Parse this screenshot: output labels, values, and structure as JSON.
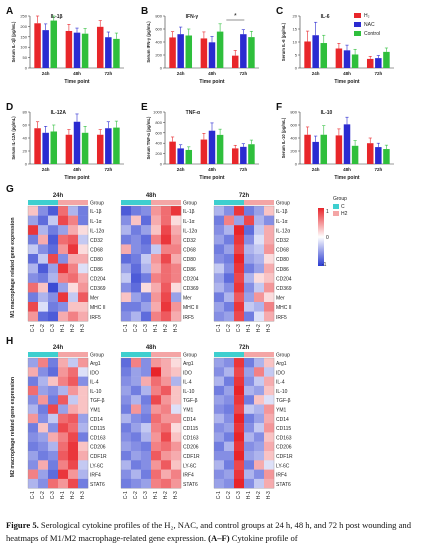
{
  "chart_data": [
    {
      "panel": "A",
      "type": "bar",
      "title": "IL-1β",
      "ylabel": "Serum IL-1β (pg/mL)",
      "xlabel": "Time point",
      "categories": [
        "24h",
        "48h",
        "72h"
      ],
      "ylim": [
        0,
        250
      ],
      "yticks": [
        0,
        50,
        100,
        150,
        200,
        250
      ],
      "series": [
        {
          "name": "H2",
          "values": [
            215,
            178,
            198
          ]
        },
        {
          "name": "NAC",
          "values": [
            182,
            170,
            148
          ]
        },
        {
          "name": "Control",
          "values": [
            228,
            165,
            140
          ]
        }
      ],
      "errors": [
        [
          38,
          32,
          30
        ],
        [
          30,
          22,
          25
        ],
        [
          42,
          25,
          28
        ]
      ]
    },
    {
      "panel": "B",
      "type": "bar",
      "title": "IFN-γ",
      "ylabel": "Serum IFN-γ (pg/mL)",
      "xlabel": "Time point",
      "categories": [
        "24h",
        "48h",
        "72h"
      ],
      "ylim": [
        0,
        800
      ],
      "yticks": [
        0,
        200,
        400,
        600,
        800
      ],
      "series": [
        {
          "name": "H2",
          "values": [
            470,
            455,
            190
          ]
        },
        {
          "name": "NAC",
          "values": [
            520,
            395,
            520
          ]
        },
        {
          "name": "Control",
          "values": [
            500,
            560,
            475
          ]
        }
      ],
      "errors": [
        [
          90,
          100,
          80
        ],
        [
          110,
          90,
          70
        ],
        [
          100,
          120,
          90
        ]
      ],
      "annotation": "*"
    },
    {
      "panel": "C",
      "type": "bar",
      "title": "IL-6",
      "ylabel": "Serum IL-6 (pg/mL)",
      "xlabel": "Time point",
      "categories": [
        "24h",
        "48h",
        "72h"
      ],
      "ylim": [
        0,
        20
      ],
      "yticks": [
        0,
        5,
        10,
        15,
        20
      ],
      "series": [
        {
          "name": "H2",
          "values": [
            10.2,
            7.5,
            3.5
          ]
        },
        {
          "name": "NAC",
          "values": [
            12.6,
            6.8,
            3.8
          ]
        },
        {
          "name": "Control",
          "values": [
            9.6,
            5.2,
            6.2
          ]
        }
      ],
      "errors": [
        [
          4,
          2,
          1
        ],
        [
          5,
          2,
          1
        ],
        [
          3,
          2,
          1.5
        ]
      ]
    },
    {
      "panel": "D",
      "type": "bar",
      "title": "IL-12A",
      "ylabel": "Serum IL-12A (pg/mL)",
      "xlabel": "Time point",
      "categories": [
        "24h",
        "48h",
        "72h"
      ],
      "ylim": [
        0,
        80
      ],
      "yticks": [
        0,
        20,
        40,
        60,
        80
      ],
      "series": [
        {
          "name": "H2",
          "values": [
            55,
            45,
            45
          ]
        },
        {
          "name": "NAC",
          "values": [
            48,
            65,
            55
          ]
        },
        {
          "name": "Control",
          "values": [
            50,
            48,
            56
          ]
        }
      ],
      "errors": [
        [
          10,
          8,
          8
        ],
        [
          10,
          12,
          10
        ],
        [
          10,
          10,
          10
        ]
      ]
    },
    {
      "panel": "E",
      "type": "bar",
      "title": "TNF-α",
      "ylabel": "Serum TNF-α (pg/mL)",
      "xlabel": "Time point",
      "categories": [
        "24h",
        "48h",
        "72h"
      ],
      "ylim": [
        0,
        1000
      ],
      "yticks": [
        0,
        200,
        400,
        600,
        800,
        1000
      ],
      "series": [
        {
          "name": "H2",
          "values": [
            430,
            470,
            300
          ]
        },
        {
          "name": "NAC",
          "values": [
            300,
            640,
            330
          ]
        },
        {
          "name": "Control",
          "values": [
            270,
            560,
            380
          ]
        }
      ],
      "errors": [
        [
          90,
          120,
          60
        ],
        [
          70,
          150,
          60
        ],
        [
          60,
          110,
          80
        ]
      ]
    },
    {
      "panel": "F",
      "type": "bar",
      "title": "IL-10",
      "ylabel": "Serum IL-10 (pg/mL)",
      "xlabel": "Time point",
      "categories": [
        "24h",
        "48h",
        "72h"
      ],
      "ylim": [
        0,
        800
      ],
      "yticks": [
        0,
        200,
        400,
        600,
        800
      ],
      "series": [
        {
          "name": "H2",
          "values": [
            450,
            440,
            320
          ]
        },
        {
          "name": "NAC",
          "values": [
            340,
            610,
            260
          ]
        },
        {
          "name": "Control",
          "values": [
            450,
            280,
            230
          ]
        }
      ],
      "errors": [
        [
          120,
          100,
          80
        ],
        [
          90,
          110,
          60
        ],
        [
          140,
          80,
          60
        ]
      ]
    }
  ],
  "legend": {
    "entries": [
      {
        "label": "H₂",
        "color": "#e8262a"
      },
      {
        "label": "NAC",
        "color": "#2a2ad0"
      },
      {
        "label": "Control",
        "color": "#2fbf3c"
      }
    ]
  },
  "heatmaps": {
    "G": {
      "panel": "G",
      "side_label": "M1 macrophage related gene expression",
      "genes": [
        "IL-1β",
        "IL-1α",
        "IL-12α",
        "CD32",
        "CD68",
        "CD80",
        "CD86",
        "CD204",
        "CD369",
        "Mer",
        "MHC II",
        "IRF5"
      ],
      "columns": [
        "C-1",
        "C-2",
        "C-3",
        "H-1",
        "H-2",
        "H-3"
      ],
      "times": [
        "24h",
        "48h",
        "72h"
      ],
      "group_label": "Group",
      "values": [
        [
          [
            0.2,
            -0.5,
            -0.8,
            0.6,
            -0.3,
            -0.6
          ],
          [
            -0.4,
            -0.7,
            -0.2,
            0.8,
            0.5,
            -0.6
          ],
          [
            0.9,
            -0.3,
            -0.6,
            -0.4,
            0.3,
            0.1
          ],
          [
            -0.6,
            0.3,
            -0.8,
            0.6,
            0.7,
            -0.2
          ],
          [
            -0.2,
            -0.5,
            -0.7,
            0.4,
            0.9,
            0.1
          ],
          [
            -0.7,
            -0.2,
            0.8,
            -0.5,
            0.3,
            0.3
          ],
          [
            -0.3,
            -0.8,
            -0.4,
            0.9,
            0.5,
            -0.1
          ],
          [
            -0.5,
            -0.6,
            -0.3,
            0.5,
            0.6,
            0.3
          ],
          [
            0.6,
            0.2,
            -0.9,
            -0.4,
            0.1,
            0.4
          ],
          [
            -0.6,
            -0.3,
            -0.5,
            0.9,
            -0.2,
            0.7
          ],
          [
            0.8,
            -0.1,
            -0.6,
            -0.5,
            0.2,
            0.2
          ],
          [
            0.4,
            -0.7,
            -0.8,
            0.3,
            0.5,
            0.3
          ]
        ],
        [
          [
            -0.8,
            -0.6,
            -0.5,
            0.4,
            0.6,
            0.9
          ],
          [
            -0.5,
            0.2,
            -0.7,
            0.3,
            0.6,
            0.1
          ],
          [
            -0.3,
            -0.6,
            -0.4,
            0.2,
            0.8,
            0.3
          ],
          [
            -0.6,
            -0.5,
            -0.7,
            0.5,
            0.9,
            0.4
          ],
          [
            0.3,
            -0.5,
            -0.6,
            -0.2,
            0.5,
            0.5
          ],
          [
            -0.7,
            -0.6,
            -0.2,
            0.4,
            0.8,
            0.3
          ],
          [
            -0.4,
            -0.7,
            -0.3,
            0.3,
            0.6,
            0.5
          ],
          [
            -0.2,
            -0.8,
            -0.6,
            0.5,
            0.6,
            0.5
          ],
          [
            -0.5,
            -0.7,
            0.1,
            0.3,
            0.7,
            0.1
          ],
          [
            0.2,
            -0.4,
            -0.6,
            0.4,
            0.8,
            -0.4
          ],
          [
            -0.6,
            -0.6,
            -0.4,
            0.3,
            0.9,
            0.4
          ],
          [
            -0.5,
            -0.3,
            -0.7,
            0.5,
            0.7,
            0.3
          ]
        ],
        [
          [
            -0.3,
            -0.5,
            0.9,
            -0.6,
            -0.4,
            0.2
          ],
          [
            -0.6,
            0.5,
            -0.4,
            0.8,
            -0.3,
            -0.5
          ],
          [
            -0.5,
            -0.3,
            1.0,
            -0.7,
            -0.2,
            0.3
          ],
          [
            -0.4,
            -0.6,
            0.9,
            -0.5,
            -0.1,
            0.3
          ],
          [
            -0.6,
            -0.4,
            0.8,
            -0.3,
            -0.2,
            0.4
          ],
          [
            -0.5,
            -0.6,
            1.0,
            -0.4,
            -0.3,
            0.1
          ],
          [
            -0.2,
            -0.5,
            0.9,
            -0.6,
            -0.4,
            0.3
          ],
          [
            -0.4,
            -0.7,
            0.8,
            -0.3,
            0.1,
            0.2
          ],
          [
            -0.3,
            -0.5,
            0.9,
            -0.5,
            -0.2,
            0.4
          ],
          [
            -0.6,
            -0.3,
            0.7,
            -0.4,
            0.4,
            0.1
          ],
          [
            -0.4,
            -0.6,
            0.9,
            -0.2,
            -0.3,
            0.5
          ],
          [
            -0.5,
            -0.4,
            0.8,
            -0.6,
            -0.1,
            0.3
          ]
        ]
      ]
    },
    "H": {
      "panel": "H",
      "side_label": "M2 macrophage related gene expression",
      "genes": [
        "Arg1",
        "IDO",
        "IL-4",
        "IL-10",
        "TGF-β",
        "YM1",
        "CD14",
        "CD115",
        "CD163",
        "CD206",
        "CDF1R",
        "LY-6C",
        "IRF4",
        "STAT6"
      ],
      "columns": [
        "C-1",
        "C-2",
        "C-3",
        "H-1",
        "H-2",
        "H-3"
      ],
      "times": [
        "24h",
        "48h",
        "72h"
      ],
      "group_label": "Group",
      "values": [
        [
          [
            -0.4,
            0.5,
            -0.6,
            0.3,
            -0.2,
            0.4
          ],
          [
            0.3,
            -0.5,
            -0.7,
            0.4,
            0.6,
            -0.1
          ],
          [
            -0.6,
            -0.3,
            0.2,
            0.5,
            0.7,
            -0.5
          ],
          [
            0.6,
            -0.4,
            -0.5,
            -0.3,
            0.4,
            0.2
          ],
          [
            -0.5,
            0.4,
            -0.6,
            0.7,
            -0.2,
            0.2
          ],
          [
            -0.3,
            -0.6,
            0.8,
            -0.4,
            0.3,
            0.2
          ],
          [
            0.4,
            -0.5,
            -0.2,
            0.6,
            0.7,
            -0.4
          ],
          [
            -0.6,
            0.2,
            -0.5,
            0.8,
            0.6,
            -0.3
          ],
          [
            -0.5,
            -0.4,
            0.3,
            0.5,
            0.8,
            -0.6
          ],
          [
            -0.6,
            -0.5,
            -0.3,
            0.6,
            0.9,
            0.2
          ],
          [
            -0.4,
            -0.6,
            -0.5,
            0.7,
            0.9,
            0.3
          ],
          [
            -0.5,
            0.3,
            -0.6,
            0.5,
            0.8,
            -0.2
          ],
          [
            0.5,
            -0.4,
            -0.7,
            0.9,
            0.4,
            -0.3
          ],
          [
            -0.3,
            -0.5,
            0.6,
            0.4,
            0.8,
            -0.6
          ]
        ],
        [
          [
            -0.7,
            0.5,
            -0.5,
            0.4,
            0.3,
            0.1
          ],
          [
            -0.6,
            -0.4,
            -0.5,
            1.0,
            0.3,
            0.2
          ],
          [
            -0.5,
            -0.4,
            0.3,
            0.6,
            0.4,
            -0.3
          ],
          [
            -0.4,
            -0.6,
            -0.3,
            0.5,
            0.7,
            0.2
          ],
          [
            -0.5,
            -0.3,
            -0.6,
            0.8,
            0.4,
            0.2
          ],
          [
            -0.6,
            0.4,
            -0.5,
            0.4,
            0.5,
            -0.1
          ],
          [
            -0.3,
            -0.5,
            -0.6,
            0.6,
            0.4,
            0.4
          ],
          [
            -0.6,
            -0.4,
            -0.2,
            0.5,
            0.6,
            0.1
          ],
          [
            -0.5,
            -0.6,
            -0.3,
            0.4,
            0.8,
            0.2
          ],
          [
            -0.4,
            -0.5,
            -0.6,
            0.5,
            0.6,
            0.4
          ],
          [
            -0.6,
            -0.4,
            -0.5,
            0.7,
            0.4,
            0.3
          ],
          [
            -0.3,
            -0.6,
            -0.5,
            0.4,
            0.7,
            0.2
          ],
          [
            -0.5,
            -0.3,
            -0.6,
            0.6,
            0.3,
            0.5
          ],
          [
            -0.6,
            -0.5,
            -0.4,
            0.5,
            0.6,
            0.4
          ]
        ],
        [
          [
            -0.4,
            -0.5,
            0.9,
            -0.6,
            -0.3,
            0.2
          ],
          [
            -0.5,
            -0.3,
            0.8,
            -0.4,
            0.5,
            -0.2
          ],
          [
            -0.3,
            -0.6,
            0.9,
            -0.5,
            -0.2,
            0.3
          ],
          [
            -0.6,
            -0.4,
            1.0,
            -0.3,
            -0.4,
            0.2
          ],
          [
            -0.4,
            -0.5,
            0.9,
            -0.6,
            0.2,
            -0.1
          ],
          [
            -0.5,
            -0.6,
            0.8,
            -0.2,
            -0.3,
            0.4
          ],
          [
            -0.3,
            -0.5,
            1.0,
            -0.6,
            -0.4,
            0.3
          ],
          [
            -0.5,
            -0.4,
            0.9,
            -0.5,
            -0.2,
            0.4
          ],
          [
            -0.4,
            -0.6,
            1.0,
            -0.3,
            -0.5,
            0.2
          ],
          [
            -0.6,
            -0.3,
            0.9,
            -0.5,
            -0.4,
            0.3
          ],
          [
            -0.5,
            -0.5,
            1.0,
            -0.4,
            -0.3,
            0.2
          ],
          [
            -0.3,
            -0.6,
            0.8,
            -0.6,
            0.3,
            -0.1
          ],
          [
            -0.5,
            -0.4,
            0.9,
            -0.3,
            -0.5,
            0.4
          ],
          [
            -0.4,
            -0.5,
            1.0,
            -0.5,
            -0.2,
            0.3
          ]
        ]
      ]
    },
    "colorbar": {
      "ticks": [
        "1",
        "0",
        "-1"
      ],
      "group_title": "Group",
      "group_items": [
        {
          "label": "C",
          "color": "#3ecfcf"
        },
        {
          "label": "H2",
          "color": "#f4a5a5"
        }
      ]
    }
  },
  "caption": {
    "label": "Figure 5.",
    "text": " Serological cytokine profiles of the H₂, NAC, and control groups at 24 h, 48 h, and 72 h post wounding and heatmaps of M1/M2 macrophage-related gene expression. ",
    "tail_bold": "(A–F)",
    "tail": " Cytokine profile of"
  },
  "colors": {
    "h2": "#e8262a",
    "nac": "#2a2ad0",
    "control": "#2fbf3c",
    "heat_hi": "#e8242a",
    "heat_mid": "#ffffff",
    "heat_lo": "#2a3bd0",
    "group_c": "#3ecfcf",
    "group_h": "#f4a5a5"
  }
}
